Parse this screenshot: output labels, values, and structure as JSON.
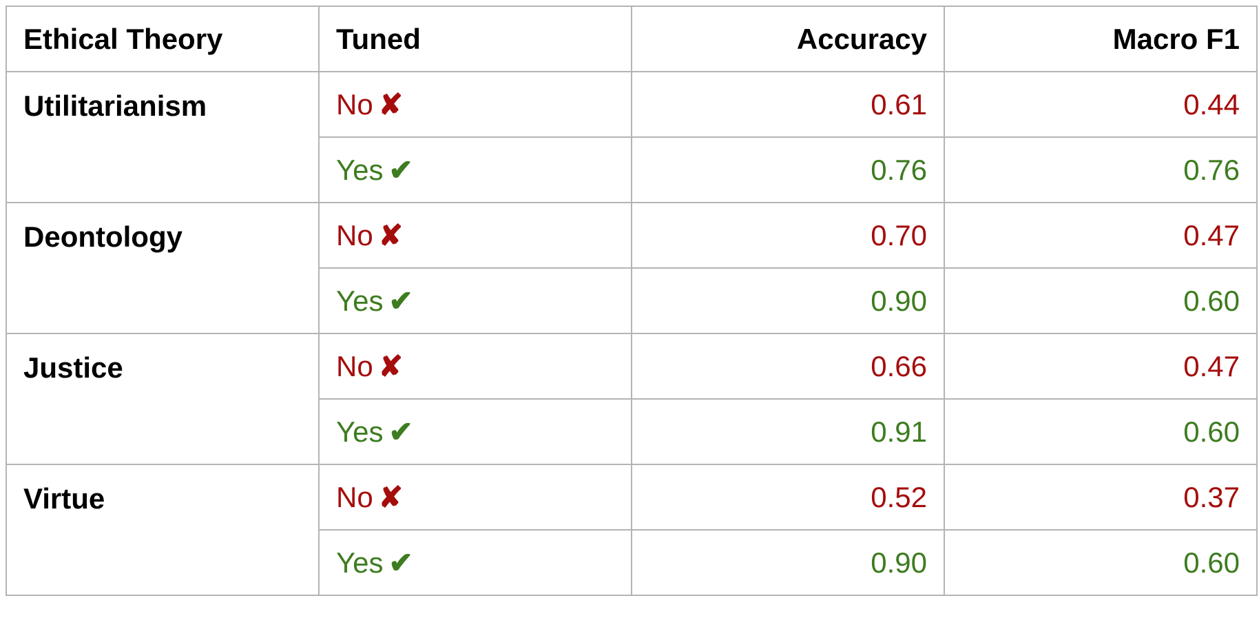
{
  "colors": {
    "no": "#a50d0d",
    "yes": "#3d7c1f",
    "header_text": "#000000",
    "grid": "#b4b4b4"
  },
  "headers": [
    "Ethical Theory",
    "Tuned",
    "Accuracy",
    "Macro F1"
  ],
  "groups": [
    {
      "theory": "Utilitarianism",
      "rows": [
        {
          "tuned": "No",
          "mark": "✘",
          "accuracy": "0.61",
          "macro_f1": "0.44",
          "status": "no"
        },
        {
          "tuned": "Yes",
          "mark": "✔",
          "accuracy": "0.76",
          "macro_f1": "0.76",
          "status": "yes"
        }
      ]
    },
    {
      "theory": "Deontology",
      "rows": [
        {
          "tuned": "No",
          "mark": "✘",
          "accuracy": "0.70",
          "macro_f1": "0.47",
          "status": "no"
        },
        {
          "tuned": "Yes",
          "mark": "✔",
          "accuracy": "0.90",
          "macro_f1": "0.60",
          "status": "yes"
        }
      ]
    },
    {
      "theory": "Justice",
      "rows": [
        {
          "tuned": "No",
          "mark": "✘",
          "accuracy": "0.66",
          "macro_f1": "0.47",
          "status": "no"
        },
        {
          "tuned": "Yes",
          "mark": "✔",
          "accuracy": "0.91",
          "macro_f1": "0.60",
          "status": "yes"
        }
      ]
    },
    {
      "theory": "Virtue",
      "rows": [
        {
          "tuned": "No",
          "mark": "✘",
          "accuracy": "0.52",
          "macro_f1": "0.37",
          "status": "no"
        },
        {
          "tuned": "Yes",
          "mark": "✔",
          "accuracy": "0.90",
          "macro_f1": "0.60",
          "status": "yes"
        }
      ]
    }
  ]
}
